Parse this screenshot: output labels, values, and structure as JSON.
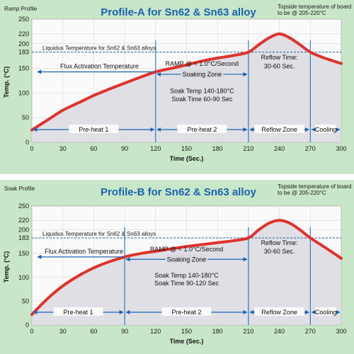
{
  "chart_data": [
    {
      "type": "line",
      "corner_label": "Ramp Profile",
      "title": "Profile-A for Sn62 & Sn63 alloy",
      "topside_note": [
        "Topside temperature of board",
        "to be @ 205-220°C"
      ],
      "xlabel": "Time (Sec.)",
      "ylabel": "Temp. (°C)",
      "xlim": [
        0,
        300
      ],
      "ylim": [
        0,
        250
      ],
      "x_ticks": [
        0,
        30,
        60,
        90,
        120,
        150,
        180,
        210,
        240,
        270,
        300
      ],
      "y_ticks": [
        "0",
        "50",
        "100",
        "150",
        "183",
        "200",
        "220",
        "250"
      ],
      "grid": true,
      "liquidus_label": "Liquidus Temperature for Sn62 & Sn63 alloys",
      "liquidus_value": 183,
      "series": [
        {
          "x": [
            0,
            15,
            30,
            45,
            60,
            75,
            90,
            105,
            120,
            135,
            150,
            165,
            180,
            195,
            210,
            220,
            230,
            240,
            250,
            260,
            270,
            285,
            300
          ],
          "y": [
            25,
            45,
            65,
            80,
            95,
            108,
            120,
            132,
            143,
            150,
            157,
            165,
            171,
            176,
            183,
            198,
            212,
            220,
            212,
            198,
            183,
            170,
            160
          ],
          "color": "#e0322b"
        }
      ],
      "zone_lines": [
        120,
        210,
        270
      ],
      "phases": [
        {
          "label": "Pre-heat 1",
          "from": 0,
          "to": 120
        },
        {
          "label": "Pre-heat 2",
          "from": 120,
          "to": 210
        },
        {
          "label": "Reflow Zone",
          "from": 210,
          "to": 270
        },
        {
          "label": "Cooling",
          "from": 270,
          "to": 300
        }
      ],
      "flux_label": "Flux Activation Temperature",
      "ramp_label": "RAMP @ < 1.0°C/Second",
      "soak_zone_label": "Soaking Zone",
      "soak_temp": "Soak Temp 140-180°C",
      "soak_time": "Soak Time 60-90 Sec",
      "reflow_time": [
        "Reflow Time:",
        "30-60 Sec."
      ],
      "colors": {
        "curve": "#e0322b",
        "arrows": "#1a63b0",
        "plot_bg": "#fafafa",
        "area": "#d9d9e0",
        "panel": "#c8e6c8",
        "title": "#1a63b0"
      }
    },
    {
      "type": "line",
      "corner_label": "Soak Profile",
      "title": "Profile-B for Sn62 & Sn63 alloy",
      "topside_note": [
        "Topside temperature of board",
        "to be @ 205-220°C"
      ],
      "xlabel": "Time (Sec.)",
      "ylabel": "Temp. (°C)",
      "xlim": [
        0,
        300
      ],
      "ylim": [
        0,
        250
      ],
      "x_ticks": [
        0,
        30,
        60,
        90,
        120,
        150,
        180,
        210,
        240,
        270,
        300
      ],
      "y_ticks": [
        "0",
        "50",
        "100",
        "150",
        "183",
        "200",
        "220",
        "250"
      ],
      "grid": true,
      "liquidus_label": "Liquidus Temperature for Sn62 & Sn63 alloys",
      "liquidus_value": 183,
      "series": [
        {
          "x": [
            0,
            15,
            30,
            45,
            60,
            75,
            90,
            105,
            120,
            135,
            150,
            165,
            180,
            195,
            210,
            220,
            230,
            240,
            250,
            260,
            270,
            285,
            300
          ],
          "y": [
            22,
            55,
            82,
            103,
            120,
            133,
            143,
            150,
            155,
            160,
            165,
            169,
            173,
            177,
            183,
            200,
            214,
            220,
            214,
            200,
            183,
            162,
            140
          ],
          "color": "#e0322b"
        }
      ],
      "zone_lines": [
        90,
        210,
        270
      ],
      "phases": [
        {
          "label": "Pre-heat 1",
          "from": 0,
          "to": 90
        },
        {
          "label": "Pre-heat 2",
          "from": 90,
          "to": 210
        },
        {
          "label": "Reflow Zone",
          "from": 210,
          "to": 270
        },
        {
          "label": "Cooling",
          "from": 270,
          "to": 300
        }
      ],
      "flux_label": "Flux Activation Temperature",
      "ramp_label": "RAMP @ < 1.0°C/Second",
      "soak_zone_label": "Soaking Zone",
      "soak_temp": "Soak Temp 140-180°C",
      "soak_time": "Soak Time 90-120 Sec",
      "reflow_time": [
        "Reflow Time:",
        "30-60 Sec."
      ],
      "colors": {
        "curve": "#e0322b",
        "arrows": "#1a63b0",
        "plot_bg": "#fafafa",
        "area": "#d9d9e0",
        "panel": "#c8e6c8",
        "title": "#1a63b0"
      }
    }
  ]
}
